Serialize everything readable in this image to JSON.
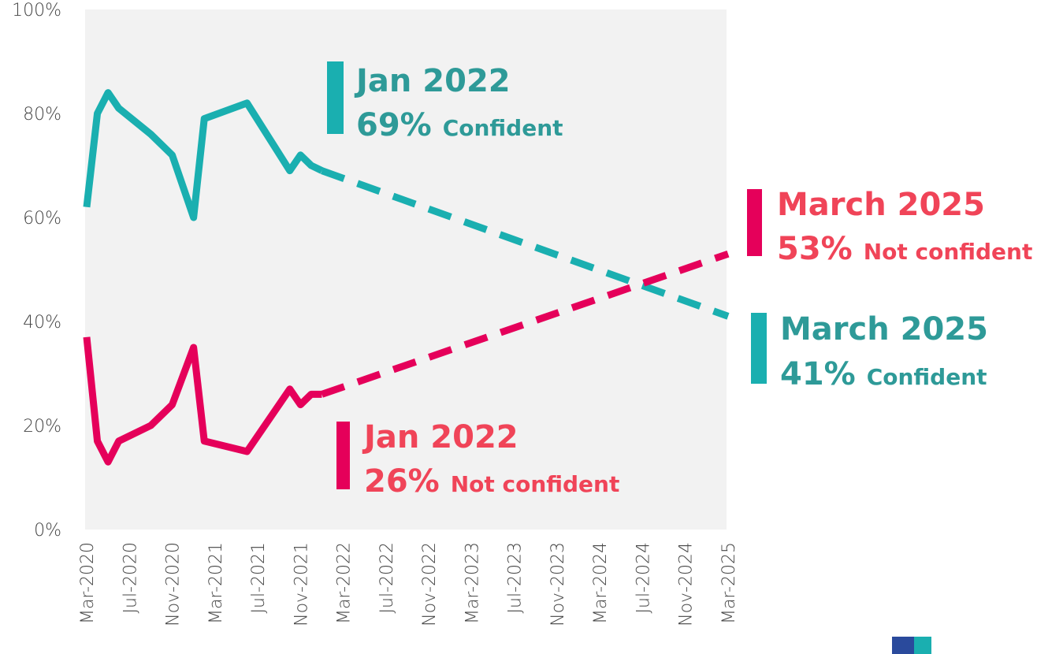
{
  "chart_data": {
    "type": "line",
    "xlim": [
      "2020-03",
      "2025-03"
    ],
    "xticks": [
      {
        "value": "2020-03",
        "label": "Mar-2020"
      },
      {
        "value": "2020-07",
        "label": "Jul-2020"
      },
      {
        "value": "2020-11",
        "label": "Nov-2020"
      },
      {
        "value": "2021-03",
        "label": "Mar-2021"
      },
      {
        "value": "2021-07",
        "label": "Jul-2021"
      },
      {
        "value": "2021-11",
        "label": "Nov-2021"
      },
      {
        "value": "2022-03",
        "label": "Mar-2022"
      },
      {
        "value": "2022-07",
        "label": "Jul-2022"
      },
      {
        "value": "2022-11",
        "label": "Nov-2022"
      },
      {
        "value": "2023-03",
        "label": "Mar-2023"
      },
      {
        "value": "2023-07",
        "label": "Jul-2023"
      },
      {
        "value": "2023-11",
        "label": "Nov-2023"
      },
      {
        "value": "2024-03",
        "label": "Mar-2024"
      },
      {
        "value": "2024-07",
        "label": "Jul-2024"
      },
      {
        "value": "2024-11",
        "label": "Nov-2024"
      },
      {
        "value": "2025-03",
        "label": "Mar-2025"
      }
    ],
    "ylim": [
      0,
      100
    ],
    "yticks": [
      {
        "value": 0,
        "label": "0%"
      },
      {
        "value": 20,
        "label": "20%"
      },
      {
        "value": 40,
        "label": "40%"
      },
      {
        "value": 60,
        "label": "60%"
      },
      {
        "value": 80,
        "label": "80%"
      },
      {
        "value": 100,
        "label": "100%"
      }
    ],
    "series": [
      {
        "color": "#1aafb0",
        "style": "solid",
        "x": [
          "2020-03",
          "2020-04",
          "2020-05",
          "2020-06",
          "2020-09",
          "2020-11",
          "2021-01",
          "2021-02",
          "2021-06",
          "2021-10",
          "2021-11",
          "2021-12",
          "2022-01"
        ],
        "values": [
          62,
          80,
          84,
          81,
          76,
          72,
          60,
          79,
          82,
          69,
          72,
          70,
          69
        ]
      },
      {
        "color": "#1aafb0",
        "style": "dashed",
        "x": [
          "2022-01",
          "2025-03"
        ],
        "values": [
          69,
          41
        ]
      },
      {
        "color": "#e5005a",
        "style": "solid",
        "x": [
          "2020-03",
          "2020-04",
          "2020-05",
          "2020-06",
          "2020-09",
          "2020-11",
          "2021-01",
          "2021-02",
          "2021-06",
          "2021-10",
          "2021-11",
          "2021-12",
          "2022-01"
        ],
        "values": [
          37,
          17,
          13,
          17,
          20,
          24,
          35,
          17,
          15,
          27,
          24,
          26,
          26
        ]
      },
      {
        "color": "#e5005a",
        "style": "dashed",
        "x": [
          "2022-01",
          "2025-03"
        ],
        "values": [
          26,
          53
        ]
      }
    ],
    "annotations": [
      {
        "date": "Jan 2022",
        "value_label": "69%",
        "text": "Confident"
      },
      {
        "date": "Jan 2022",
        "value_label": "26%",
        "text": "Not confident"
      },
      {
        "date": "March 2025",
        "value_label": "53%",
        "text": "Not confident"
      },
      {
        "date": "March 2025",
        "value_label": "41%",
        "text": "Confident"
      }
    ]
  }
}
